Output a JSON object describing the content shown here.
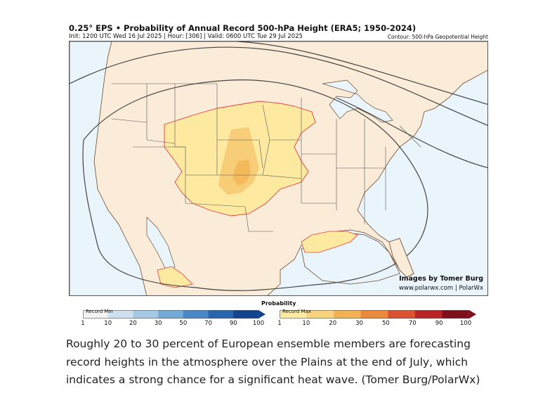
{
  "header": {
    "title": "0.25° EPS • Probability of Annual Record 500-hPa Height (ERA5; 1950-2024)",
    "subtitle": "Init: 1200 UTC Wed 16 Jul 2025 | Hour: [306] | Valid: 0600 UTC Tue 29 Jul 2025",
    "contour_note": "Contour: 500-hPa Geopotential Height"
  },
  "map": {
    "region": "Continental United States",
    "credit_line1": "Images by Tomer Burg",
    "credit_line2": "www.polarwx.com | PolarWx",
    "colors": {
      "ocean": "#eaf5fb",
      "land": "#fbebd9",
      "prob_1_10": "#fde9a0",
      "prob_10_20": "#f8cd78",
      "prob_20_30": "#f3b95a",
      "outline": "#e04040"
    }
  },
  "colorbar": {
    "title": "Probability",
    "min_label": "Record Min",
    "max_label": "Record Max",
    "min_ticks": [
      "1",
      "10",
      "20",
      "30",
      "50",
      "70",
      "90",
      "100"
    ],
    "max_ticks": [
      "1",
      "10",
      "20",
      "30",
      "50",
      "70",
      "90",
      "100"
    ],
    "min_colors": [
      "#f3f3f3",
      "#cfe0ee",
      "#a5c8e4",
      "#74aad6",
      "#4a88c5",
      "#2765ae",
      "#12438c"
    ],
    "max_colors": [
      "#fdeaa3",
      "#f8d37d",
      "#f3b155",
      "#eb8a3b",
      "#db5233",
      "#b92526",
      "#7e0f1c"
    ]
  },
  "caption": "Roughly 20 to 30 percent of European ensemble members are forecasting record heights in the atmosphere over the Plains at the end of July, which indicates a strong chance for a significant heat wave. (Tomer Burg/PolarWx)"
}
